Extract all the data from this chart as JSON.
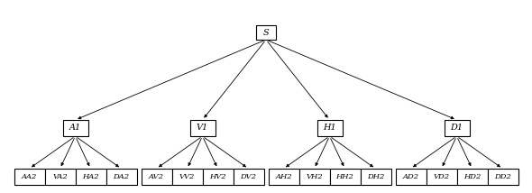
{
  "root": "S",
  "level1": [
    "A1",
    "V1",
    "H1",
    "D1"
  ],
  "level2": [
    [
      "AA2",
      "VA2",
      "HA2",
      "DA2"
    ],
    [
      "AV2",
      "VV2",
      "HV2",
      "DV2"
    ],
    [
      "AH2",
      "VH2",
      "HH2",
      "DH2"
    ],
    [
      "AD2",
      "VD2",
      "HD2",
      "DD2"
    ]
  ],
  "bg_color": "#ffffff",
  "box_edge_color": "#000000",
  "arrow_color": "#000000",
  "root_fontsize": 7,
  "l1_fontsize": 7,
  "l2_fontsize": 6,
  "fig_width": 5.9,
  "fig_height": 2.14,
  "dpi": 100
}
